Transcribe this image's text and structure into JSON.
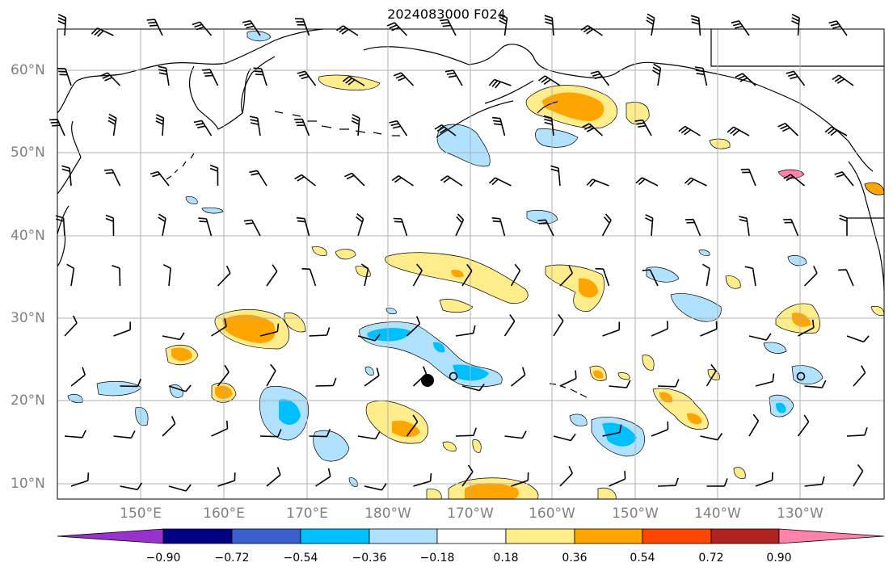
{
  "title": "2024083000 F024",
  "lat_labels": [
    "60°N",
    "50°N",
    "40°N",
    "30°N",
    "20°N",
    "10°N"
  ],
  "lon_labels": [
    "150°E",
    "160°E",
    "170°E",
    "180°W",
    "170°W",
    "160°W",
    "150°W",
    "140°W",
    "130°W"
  ],
  "colorbar": {
    "ticks": [
      "−0.90",
      "−0.72",
      "−0.54",
      "−0.36",
      "−0.18",
      "0.18",
      "0.36",
      "0.54",
      "0.72",
      "0.90"
    ],
    "colors": [
      "#9932cc",
      "#000080",
      "#3a5fcd",
      "#00bfff",
      "#b0e2ff",
      "#ffffff",
      "#ffec8b",
      "#ffa500",
      "#ff4500",
      "#b22222",
      "#ff82ab"
    ]
  },
  "colors": {
    "light_blue": "#b0e2ff",
    "deep_sky_blue": "#00bfff",
    "light_yellow": "#ffec8b",
    "orange": "#ffa500",
    "grid": "#b0b0b0",
    "axis_label": "#808080"
  },
  "markers": {
    "filled_circle": {
      "lon": -175.3,
      "lat": 22.5
    },
    "open_circles": [
      {
        "lon": -172.3,
        "lat": 23.0
      },
      {
        "lon": -130.2,
        "lat": 23.0
      }
    ]
  }
}
